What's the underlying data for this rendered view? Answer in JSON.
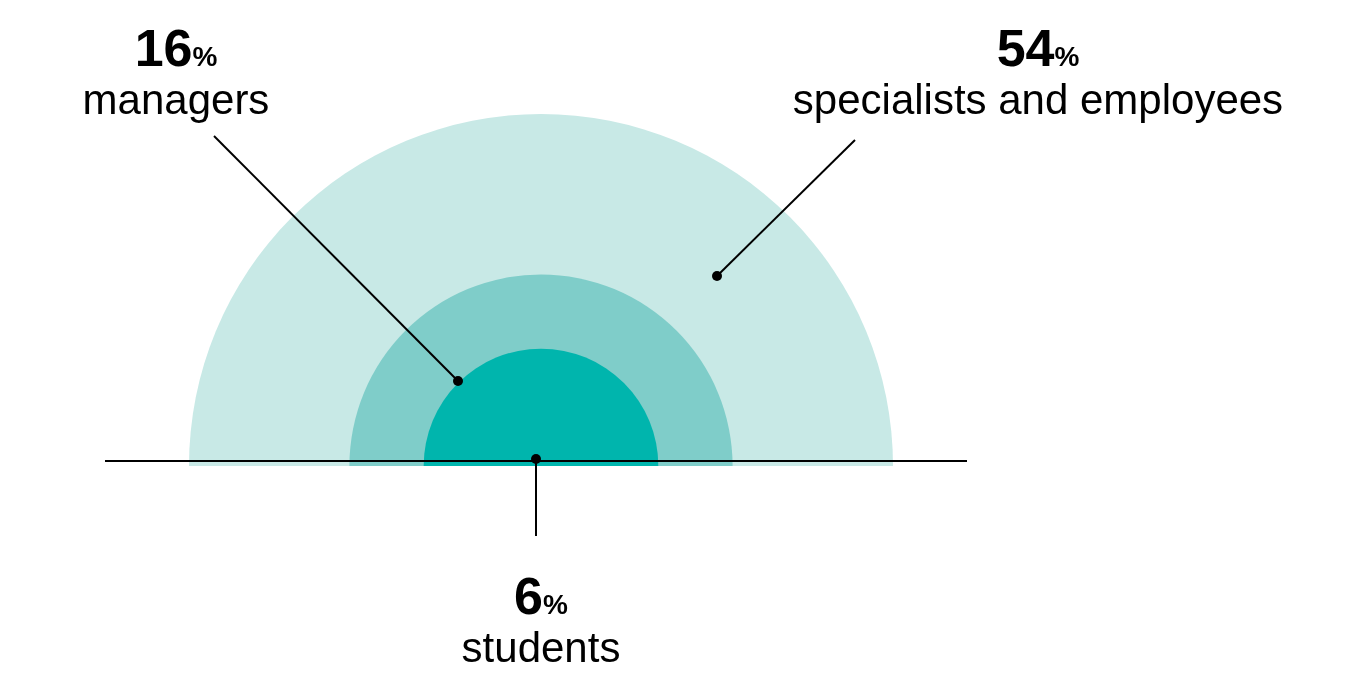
{
  "chart_data": {
    "type": "other",
    "categories": [
      "managers",
      "specialists and employees",
      "students"
    ],
    "values": [
      16,
      54,
      6
    ],
    "value_labels": [
      "16%",
      "54%",
      "6%"
    ],
    "colors": [
      "#7fcdc9",
      "#c8e9e6",
      "#00b5ad"
    ]
  }
}
